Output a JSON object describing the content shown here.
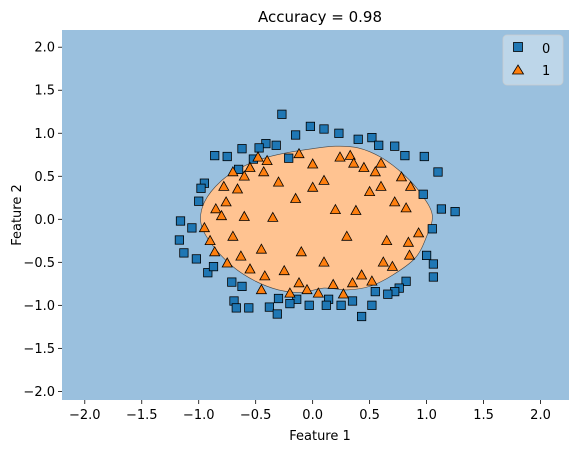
{
  "chart_data": {
    "type": "scatter",
    "title": "Accuracy = 0.98",
    "xlabel": "Feature 1",
    "ylabel": "Feature 2",
    "xlim": [
      -2.2,
      2.25
    ],
    "ylim": [
      -2.1,
      2.2
    ],
    "xticks": [
      -2.0,
      -1.5,
      -1.0,
      -0.5,
      0.0,
      0.5,
      1.0,
      1.5,
      2.0
    ],
    "yticks": [
      -2.0,
      -1.5,
      -1.0,
      -0.5,
      0.0,
      0.5,
      1.0,
      1.5,
      2.0
    ],
    "xtick_labels": [
      "−2.0",
      "−1.5",
      "−1.0",
      "−0.5",
      "0.0",
      "0.5",
      "1.0",
      "1.5",
      "2.0"
    ],
    "ytick_labels": [
      "−2.0",
      "−1.5",
      "−1.0",
      "−0.5",
      "0.0",
      "0.5",
      "1.0",
      "1.5",
      "2.0"
    ],
    "legend_position": "top-right",
    "region_colors": {
      "0": "#9ac0de",
      "1": "#ffc391"
    },
    "decision_boundary_class1": [
      [
        -0.95,
        0.2
      ],
      [
        -0.8,
        0.45
      ],
      [
        -0.6,
        0.62
      ],
      [
        -0.4,
        0.72
      ],
      [
        -0.2,
        0.78
      ],
      [
        0.0,
        0.82
      ],
      [
        0.2,
        0.85
      ],
      [
        0.4,
        0.83
      ],
      [
        0.6,
        0.72
      ],
      [
        0.8,
        0.52
      ],
      [
        0.95,
        0.3
      ],
      [
        1.05,
        0.05
      ],
      [
        1.0,
        -0.2
      ],
      [
        0.9,
        -0.45
      ],
      [
        0.7,
        -0.65
      ],
      [
        0.5,
        -0.78
      ],
      [
        0.3,
        -0.82
      ],
      [
        0.1,
        -0.8
      ],
      [
        -0.1,
        -0.85
      ],
      [
        -0.3,
        -0.82
      ],
      [
        -0.5,
        -0.72
      ],
      [
        -0.7,
        -0.55
      ],
      [
        -0.88,
        -0.3
      ],
      [
        -0.98,
        -0.05
      ]
    ],
    "series": [
      {
        "name": "0",
        "marker": "square",
        "color": "#1f77b4",
        "points": [
          [
            -0.27,
            1.22
          ],
          [
            -0.02,
            1.08
          ],
          [
            0.1,
            1.05
          ],
          [
            0.23,
            1.0
          ],
          [
            -0.15,
            0.98
          ],
          [
            0.4,
            0.93
          ],
          [
            0.52,
            0.95
          ],
          [
            -0.41,
            0.88
          ],
          [
            -0.32,
            0.86
          ],
          [
            -0.47,
            0.83
          ],
          [
            -0.62,
            0.82
          ],
          [
            0.58,
            0.86
          ],
          [
            0.72,
            0.85
          ],
          [
            -0.86,
            0.74
          ],
          [
            -0.75,
            0.73
          ],
          [
            -0.21,
            0.71
          ],
          [
            -0.52,
            0.7
          ],
          [
            0.81,
            0.74
          ],
          [
            0.98,
            0.73
          ],
          [
            -0.65,
            0.58
          ],
          [
            -0.95,
            0.42
          ],
          [
            -0.98,
            0.36
          ],
          [
            -1.0,
            0.21
          ],
          [
            0.97,
            0.29
          ],
          [
            1.1,
            0.55
          ],
          [
            1.13,
            0.12
          ],
          [
            1.25,
            0.09
          ],
          [
            -1.16,
            -0.02
          ],
          [
            -1.06,
            -0.1
          ],
          [
            -1.13,
            -0.39
          ],
          [
            -1.17,
            -0.24
          ],
          [
            -1.02,
            -0.46
          ],
          [
            1.05,
            -0.11
          ],
          [
            1.0,
            -0.42
          ],
          [
            1.06,
            -0.52
          ],
          [
            1.06,
            -0.67
          ],
          [
            -0.92,
            -0.62
          ],
          [
            -0.87,
            -0.55
          ],
          [
            -0.71,
            -0.73
          ],
          [
            -0.62,
            -0.78
          ],
          [
            -0.69,
            -0.95
          ],
          [
            0.82,
            -0.72
          ],
          [
            0.76,
            -0.8
          ],
          [
            0.72,
            -0.84
          ],
          [
            0.66,
            -0.87
          ],
          [
            -0.3,
            -0.92
          ],
          [
            -0.14,
            -0.93
          ],
          [
            -0.2,
            -0.98
          ],
          [
            0.14,
            -0.93
          ],
          [
            0.12,
            -1.0
          ],
          [
            0.52,
            -1.0
          ],
          [
            0.43,
            -1.13
          ],
          [
            -0.38,
            -1.02
          ],
          [
            -0.31,
            -1.1
          ],
          [
            -0.56,
            -1.03
          ],
          [
            -0.67,
            -1.03
          ],
          [
            -0.03,
            -1.0
          ],
          [
            0.35,
            -0.95
          ],
          [
            0.55,
            -0.84
          ],
          [
            0.25,
            -1.0
          ]
        ]
      },
      {
        "name": "1",
        "marker": "triangle",
        "color": "#ff7f0e",
        "points": [
          [
            -0.12,
            0.76
          ],
          [
            0.0,
            0.64
          ],
          [
            0.24,
            0.72
          ],
          [
            0.33,
            0.74
          ],
          [
            0.36,
            0.65
          ],
          [
            -0.48,
            0.72
          ],
          [
            -0.4,
            0.68
          ],
          [
            -0.55,
            0.6
          ],
          [
            -0.7,
            0.55
          ],
          [
            -0.6,
            0.5
          ],
          [
            -0.43,
            0.55
          ],
          [
            0.45,
            0.6
          ],
          [
            0.55,
            0.55
          ],
          [
            0.6,
            0.65
          ],
          [
            -0.78,
            0.38
          ],
          [
            -0.66,
            0.35
          ],
          [
            -0.76,
            0.2
          ],
          [
            -0.85,
            0.12
          ],
          [
            -0.8,
            0.04
          ],
          [
            0.6,
            0.38
          ],
          [
            0.78,
            0.49
          ],
          [
            0.86,
            0.38
          ],
          [
            0.72,
            0.2
          ],
          [
            0.82,
            0.13
          ],
          [
            0.1,
            0.45
          ],
          [
            0.0,
            0.37
          ],
          [
            -0.3,
            0.43
          ],
          [
            -0.15,
            0.24
          ],
          [
            0.2,
            0.11
          ],
          [
            -0.95,
            -0.1
          ],
          [
            -0.9,
            -0.25
          ],
          [
            -0.86,
            -0.38
          ],
          [
            0.84,
            -0.27
          ],
          [
            0.93,
            -0.16
          ],
          [
            0.85,
            -0.42
          ],
          [
            -0.75,
            -0.51
          ],
          [
            -0.63,
            -0.43
          ],
          [
            -0.55,
            -0.58
          ],
          [
            0.7,
            -0.55
          ],
          [
            0.62,
            -0.5
          ],
          [
            -0.42,
            -0.66
          ],
          [
            -0.25,
            -0.6
          ],
          [
            0.43,
            -0.65
          ],
          [
            0.35,
            -0.74
          ],
          [
            0.18,
            -0.76
          ],
          [
            -0.12,
            -0.74
          ],
          [
            -0.05,
            -0.82
          ],
          [
            -0.2,
            -0.86
          ],
          [
            -0.45,
            -0.82
          ],
          [
            0.05,
            -0.86
          ],
          [
            0.27,
            -0.87
          ],
          [
            0.52,
            -0.72
          ],
          [
            -0.35,
            0.02
          ],
          [
            0.3,
            -0.2
          ],
          [
            -0.6,
            0.03
          ],
          [
            0.5,
            0.32
          ],
          [
            -0.1,
            -0.38
          ],
          [
            0.65,
            -0.25
          ],
          [
            -0.45,
            -0.35
          ],
          [
            0.1,
            -0.5
          ],
          [
            0.38,
            0.1
          ],
          [
            -0.7,
            -0.2
          ]
        ]
      }
    ]
  }
}
